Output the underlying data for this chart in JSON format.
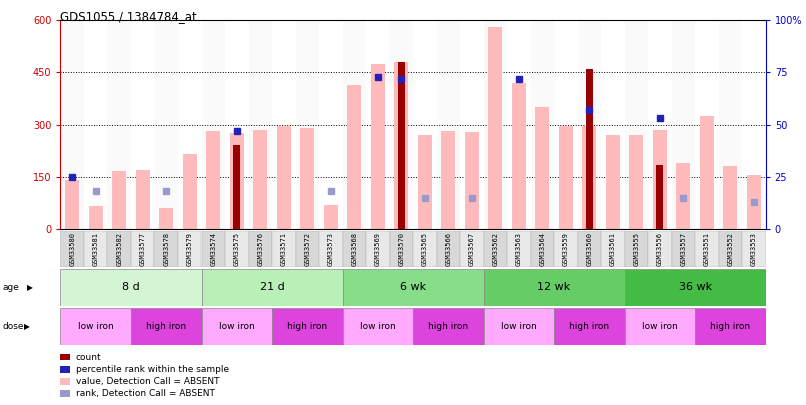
{
  "title": "GDS1055 / 1384784_at",
  "samples": [
    "GSM33580",
    "GSM33581",
    "GSM33582",
    "GSM33577",
    "GSM33578",
    "GSM33579",
    "GSM33574",
    "GSM33575",
    "GSM33576",
    "GSM33571",
    "GSM33572",
    "GSM33573",
    "GSM33568",
    "GSM33569",
    "GSM33570",
    "GSM33565",
    "GSM33566",
    "GSM33567",
    "GSM33562",
    "GSM33563",
    "GSM33564",
    "GSM33559",
    "GSM33560",
    "GSM33561",
    "GSM33555",
    "GSM33556",
    "GSM33557",
    "GSM33551",
    "GSM33552",
    "GSM33553"
  ],
  "count_values": [
    null,
    null,
    null,
    null,
    null,
    null,
    null,
    240,
    null,
    null,
    null,
    null,
    null,
    null,
    480,
    null,
    null,
    null,
    null,
    null,
    null,
    null,
    460,
    null,
    null,
    185,
    null,
    null,
    null,
    null
  ],
  "pink_values": [
    140,
    65,
    165,
    168,
    60,
    215,
    280,
    275,
    285,
    295,
    290,
    68,
    415,
    475,
    480,
    270,
    280,
    278,
    580,
    420,
    350,
    295,
    295,
    270,
    270,
    285,
    188,
    325,
    180,
    155
  ],
  "blue_sq_pct": [
    25,
    null,
    null,
    null,
    null,
    null,
    null,
    47,
    null,
    null,
    null,
    null,
    null,
    73,
    72,
    null,
    null,
    null,
    null,
    72,
    null,
    null,
    57,
    null,
    null,
    53,
    null,
    null,
    null,
    null
  ],
  "light_blue_pct": [
    null,
    18,
    null,
    null,
    18,
    null,
    null,
    null,
    null,
    null,
    null,
    18,
    null,
    null,
    null,
    15,
    null,
    15,
    null,
    null,
    null,
    null,
    null,
    null,
    null,
    null,
    15,
    null,
    null,
    13
  ],
  "ylim": [
    0,
    600
  ],
  "yticks_left": [
    0,
    150,
    300,
    450,
    600
  ],
  "yticks_right_vals": [
    0,
    25,
    50,
    75,
    100
  ],
  "yticks_right_labels": [
    "0",
    "25",
    "50",
    "75",
    "100%"
  ],
  "age_groups": [
    {
      "label": "8 d",
      "start": 0,
      "end": 6,
      "color": "#d4f5d4"
    },
    {
      "label": "21 d",
      "start": 6,
      "end": 12,
      "color": "#b8f0b8"
    },
    {
      "label": "6 wk",
      "start": 12,
      "end": 18,
      "color": "#88dd88"
    },
    {
      "label": "12 wk",
      "start": 18,
      "end": 24,
      "color": "#66cc66"
    },
    {
      "label": "36 wk",
      "start": 24,
      "end": 30,
      "color": "#44bb44"
    }
  ],
  "dose_groups": [
    {
      "label": "low iron",
      "start": 0,
      "end": 3,
      "color": "#ffaaff"
    },
    {
      "label": "high iron",
      "start": 3,
      "end": 6,
      "color": "#dd44dd"
    },
    {
      "label": "low iron",
      "start": 6,
      "end": 9,
      "color": "#ffaaff"
    },
    {
      "label": "high iron",
      "start": 9,
      "end": 12,
      "color": "#dd44dd"
    },
    {
      "label": "low iron",
      "start": 12,
      "end": 15,
      "color": "#ffaaff"
    },
    {
      "label": "high iron",
      "start": 15,
      "end": 18,
      "color": "#dd44dd"
    },
    {
      "label": "low iron",
      "start": 18,
      "end": 21,
      "color": "#ffaaff"
    },
    {
      "label": "high iron",
      "start": 21,
      "end": 24,
      "color": "#dd44dd"
    },
    {
      "label": "low iron",
      "start": 24,
      "end": 27,
      "color": "#ffaaff"
    },
    {
      "label": "high iron",
      "start": 27,
      "end": 30,
      "color": "#dd44dd"
    }
  ],
  "pink_color": "#ffbbbb",
  "count_color": "#990000",
  "blue_sq_color": "#2222bb",
  "light_blue_color": "#9999cc",
  "left_axis_color": "#cc0000",
  "right_axis_color": "#0000cc",
  "scale_factor": 6.0
}
